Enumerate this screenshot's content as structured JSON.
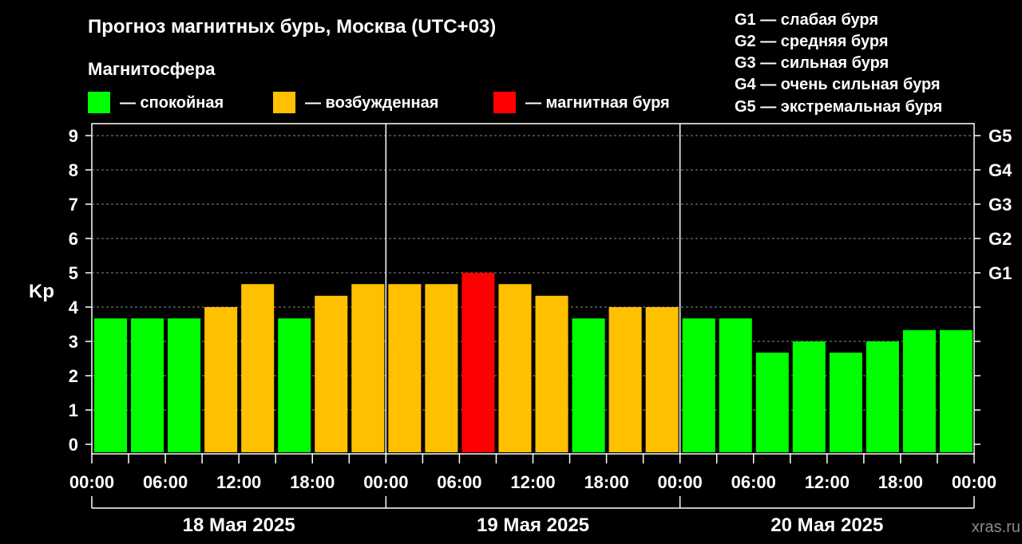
{
  "header": {
    "title": "Прогноз магнитных бурь, Москва (UTC+03)",
    "legend_title": "Магнитосфера"
  },
  "legend": [
    {
      "label": "— спокойная",
      "color": "#00ff00"
    },
    {
      "label": "— возбужденная",
      "color": "#ffc000"
    },
    {
      "label": "— магнитная буря",
      "color": "#ff0000"
    }
  ],
  "g_scale": [
    "G1 — слабая буря",
    "G2 — средняя буря",
    "G3 — сильная буря",
    "G4 — очень сильная буря",
    "G5 — экстремальная буря"
  ],
  "watermark": "xras.ru",
  "chart_data": {
    "type": "bar",
    "ylabel": "Kp",
    "ylim": [
      0,
      9
    ],
    "yticks": [
      "0",
      "1",
      "2",
      "3",
      "4",
      "5",
      "6",
      "7",
      "8",
      "9"
    ],
    "right_ticks": [
      {
        "label": "G1",
        "value": 5
      },
      {
        "label": "G2",
        "value": 6
      },
      {
        "label": "G3",
        "value": 7
      },
      {
        "label": "G4",
        "value": 8
      },
      {
        "label": "G5",
        "value": 9
      }
    ],
    "xticks": [
      "00:00",
      "06:00",
      "12:00",
      "18:00",
      "00:00",
      "06:00",
      "12:00",
      "18:00",
      "00:00",
      "06:00",
      "12:00",
      "18:00",
      "00:00"
    ],
    "days": [
      "18 Мая 2025",
      "19 Мая 2025",
      "20 Мая 2025"
    ],
    "grid": true,
    "values": [
      3.67,
      3.67,
      3.67,
      4.0,
      4.67,
      3.67,
      4.33,
      4.67,
      4.67,
      4.67,
      5.0,
      4.67,
      4.33,
      3.67,
      4.0,
      4.0,
      3.67,
      3.67,
      2.67,
      3.0,
      2.67,
      3.0,
      3.33,
      3.33
    ],
    "status": [
      "quiet",
      "quiet",
      "quiet",
      "active",
      "active",
      "quiet",
      "active",
      "active",
      "active",
      "active",
      "storm",
      "active",
      "active",
      "quiet",
      "active",
      "active",
      "quiet",
      "quiet",
      "quiet",
      "quiet",
      "quiet",
      "quiet",
      "quiet",
      "quiet"
    ],
    "status_colors": {
      "quiet": "#00ff00",
      "active": "#ffc000",
      "storm": "#ff0000"
    }
  }
}
